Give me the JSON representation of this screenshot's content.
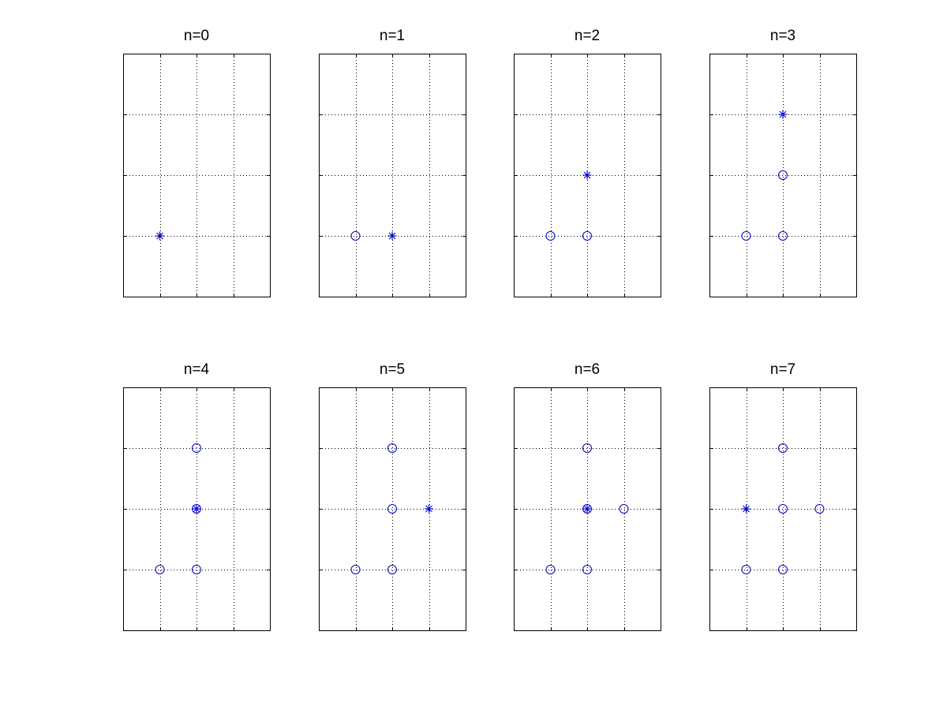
{
  "figure": {
    "marker_color": "#0000cc",
    "frame_color": "#000000",
    "grid_color": "#000000",
    "grid": true,
    "grid_style": "dotted",
    "layout": "2 rows x 4 columns"
  },
  "chart_data": [
    {
      "type": "scatter",
      "title": "n=0",
      "xlim": [
        0,
        4
      ],
      "ylim": [
        0,
        4
      ],
      "grid": true,
      "series": [
        {
          "marker": "circle",
          "points": []
        },
        {
          "marker": "asterisk",
          "points": [
            [
              1,
              1
            ]
          ]
        }
      ]
    },
    {
      "type": "scatter",
      "title": "n=1",
      "xlim": [
        0,
        4
      ],
      "ylim": [
        0,
        4
      ],
      "grid": true,
      "series": [
        {
          "marker": "circle",
          "points": [
            [
              1,
              1
            ]
          ]
        },
        {
          "marker": "asterisk",
          "points": [
            [
              2,
              1
            ]
          ]
        }
      ]
    },
    {
      "type": "scatter",
      "title": "n=2",
      "xlim": [
        0,
        4
      ],
      "ylim": [
        0,
        4
      ],
      "grid": true,
      "series": [
        {
          "marker": "circle",
          "points": [
            [
              1,
              1
            ],
            [
              2,
              1
            ]
          ]
        },
        {
          "marker": "asterisk",
          "points": [
            [
              2,
              2
            ]
          ]
        }
      ]
    },
    {
      "type": "scatter",
      "title": "n=3",
      "xlim": [
        0,
        4
      ],
      "ylim": [
        0,
        4
      ],
      "grid": true,
      "series": [
        {
          "marker": "circle",
          "points": [
            [
              1,
              1
            ],
            [
              2,
              1
            ],
            [
              2,
              2
            ]
          ]
        },
        {
          "marker": "asterisk",
          "points": [
            [
              2,
              3
            ]
          ]
        }
      ]
    },
    {
      "type": "scatter",
      "title": "n=4",
      "xlim": [
        0,
        4
      ],
      "ylim": [
        0,
        4
      ],
      "grid": true,
      "series": [
        {
          "marker": "circle",
          "points": [
            [
              1,
              1
            ],
            [
              2,
              1
            ],
            [
              2,
              2
            ],
            [
              2,
              3
            ]
          ]
        },
        {
          "marker": "asterisk",
          "points": [
            [
              2,
              2
            ]
          ]
        }
      ]
    },
    {
      "type": "scatter",
      "title": "n=5",
      "xlim": [
        0,
        4
      ],
      "ylim": [
        0,
        4
      ],
      "grid": true,
      "series": [
        {
          "marker": "circle",
          "points": [
            [
              1,
              1
            ],
            [
              2,
              1
            ],
            [
              2,
              2
            ],
            [
              2,
              3
            ]
          ]
        },
        {
          "marker": "asterisk",
          "points": [
            [
              3,
              2
            ]
          ]
        }
      ]
    },
    {
      "type": "scatter",
      "title": "n=6",
      "xlim": [
        0,
        4
      ],
      "ylim": [
        0,
        4
      ],
      "grid": true,
      "series": [
        {
          "marker": "circle",
          "points": [
            [
              1,
              1
            ],
            [
              2,
              1
            ],
            [
              2,
              2
            ],
            [
              2,
              3
            ],
            [
              3,
              2
            ]
          ]
        },
        {
          "marker": "asterisk",
          "points": [
            [
              2,
              2
            ]
          ]
        }
      ]
    },
    {
      "type": "scatter",
      "title": "n=7",
      "xlim": [
        0,
        4
      ],
      "ylim": [
        0,
        4
      ],
      "grid": true,
      "series": [
        {
          "marker": "circle",
          "points": [
            [
              1,
              1
            ],
            [
              2,
              1
            ],
            [
              2,
              2
            ],
            [
              2,
              3
            ],
            [
              3,
              2
            ]
          ]
        },
        {
          "marker": "asterisk",
          "points": [
            [
              1,
              2
            ]
          ]
        }
      ]
    }
  ]
}
